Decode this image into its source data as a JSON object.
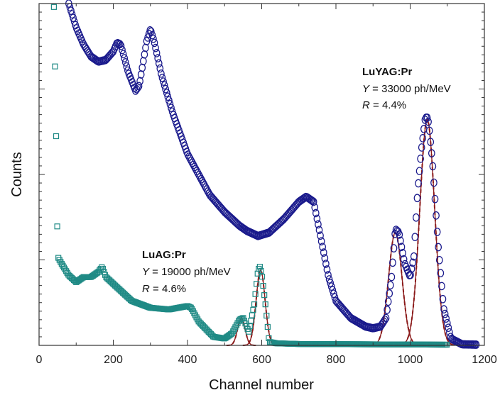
{
  "chart_data": {
    "type": "scatter",
    "xlabel": "Channel number",
    "ylabel": "Counts",
    "xlim": [
      0,
      1200
    ],
    "ylim": [
      0,
      1000
    ],
    "x_ticks": [
      "0",
      "200",
      "400",
      "600",
      "800",
      "1000",
      "1200"
    ],
    "y_axis_tick_labels_shown": false,
    "grid": false,
    "colors": {
      "luyag_marker": "#1a1a8c",
      "luag_marker": "#1f8a85",
      "fit_line": "#8b1a1a"
    },
    "series": [
      {
        "marker": "circle-open",
        "color": "#1a1a8c",
        "x": [
          80,
          100,
          120,
          140,
          160,
          180,
          200,
          210,
          220,
          240,
          260,
          270,
          290,
          300,
          310,
          330,
          360,
          400,
          430,
          460,
          500,
          540,
          560,
          590,
          620,
          660,
          700,
          720,
          740,
          760,
          780,
          800,
          840,
          880,
          900,
          920,
          935,
          950,
          960,
          970,
          985,
          1000,
          1010,
          1020,
          1030,
          1040,
          1045,
          1050,
          1060,
          1075,
          1090,
          1110,
          1140,
          1180
        ],
        "y": [
          1000,
          930,
          880,
          845,
          830,
          835,
          860,
          885,
          880,
          800,
          745,
          760,
          890,
          925,
          890,
          790,
          680,
          560,
          500,
          440,
          390,
          350,
          335,
          320,
          330,
          370,
          420,
          435,
          420,
          310,
          200,
          130,
          80,
          55,
          50,
          55,
          80,
          200,
          340,
          330,
          240,
          200,
          260,
          450,
          570,
          660,
          670,
          650,
          540,
          300,
          110,
          20,
          3,
          2
        ]
      },
      {
        "marker": "square-open",
        "color": "#1f8a85",
        "x": [
          40,
          45,
          50,
          60,
          80,
          100,
          120,
          140,
          160,
          170,
          180,
          200,
          250,
          300,
          350,
          400,
          410,
          430,
          470,
          500,
          520,
          540,
          550,
          565,
          580,
          590,
          595,
          600,
          610,
          620,
          640,
          700,
          900,
          1100
        ],
        "y": [
          990,
          700,
          260,
          240,
          205,
          185,
          200,
          200,
          215,
          230,
          200,
          180,
          130,
          110,
          105,
          115,
          110,
          70,
          25,
          20,
          35,
          75,
          80,
          40,
          120,
          220,
          230,
          210,
          120,
          10,
          6,
          4,
          3,
          2
        ]
      }
    ],
    "fits": [
      {
        "style": "solid",
        "center": 545,
        "sigma": 10,
        "amplitude": 80
      },
      {
        "style": "solid",
        "center": 597,
        "sigma": 12,
        "amplitude": 220
      },
      {
        "style": "dashed",
        "center": 545,
        "sigma": 10,
        "amplitude": 80
      },
      {
        "style": "dashed",
        "center": 597,
        "sigma": 12,
        "amplitude": 220
      },
      {
        "style": "solid",
        "center": 960,
        "sigma": 18,
        "amplitude": 330
      },
      {
        "style": "solid",
        "center": 1046,
        "sigma": 20,
        "amplitude": 660
      },
      {
        "style": "dashed",
        "center": 960,
        "sigma": 18,
        "amplitude": 330
      },
      {
        "style": "dashed",
        "center": 1046,
        "sigma": 20,
        "amplitude": 660
      }
    ],
    "annotations": [
      {
        "name": "LuYAG:Pr",
        "y_label": "Y",
        "y_value": " = 33000 ph/MeV",
        "r_label": "R",
        "r_value": " = 4.4%"
      },
      {
        "name": "LuAG:Pr",
        "y_label": "Y",
        "y_value": " = 19000 ph/MeV",
        "r_label": "R",
        "r_value": " = 4.6%"
      }
    ]
  }
}
